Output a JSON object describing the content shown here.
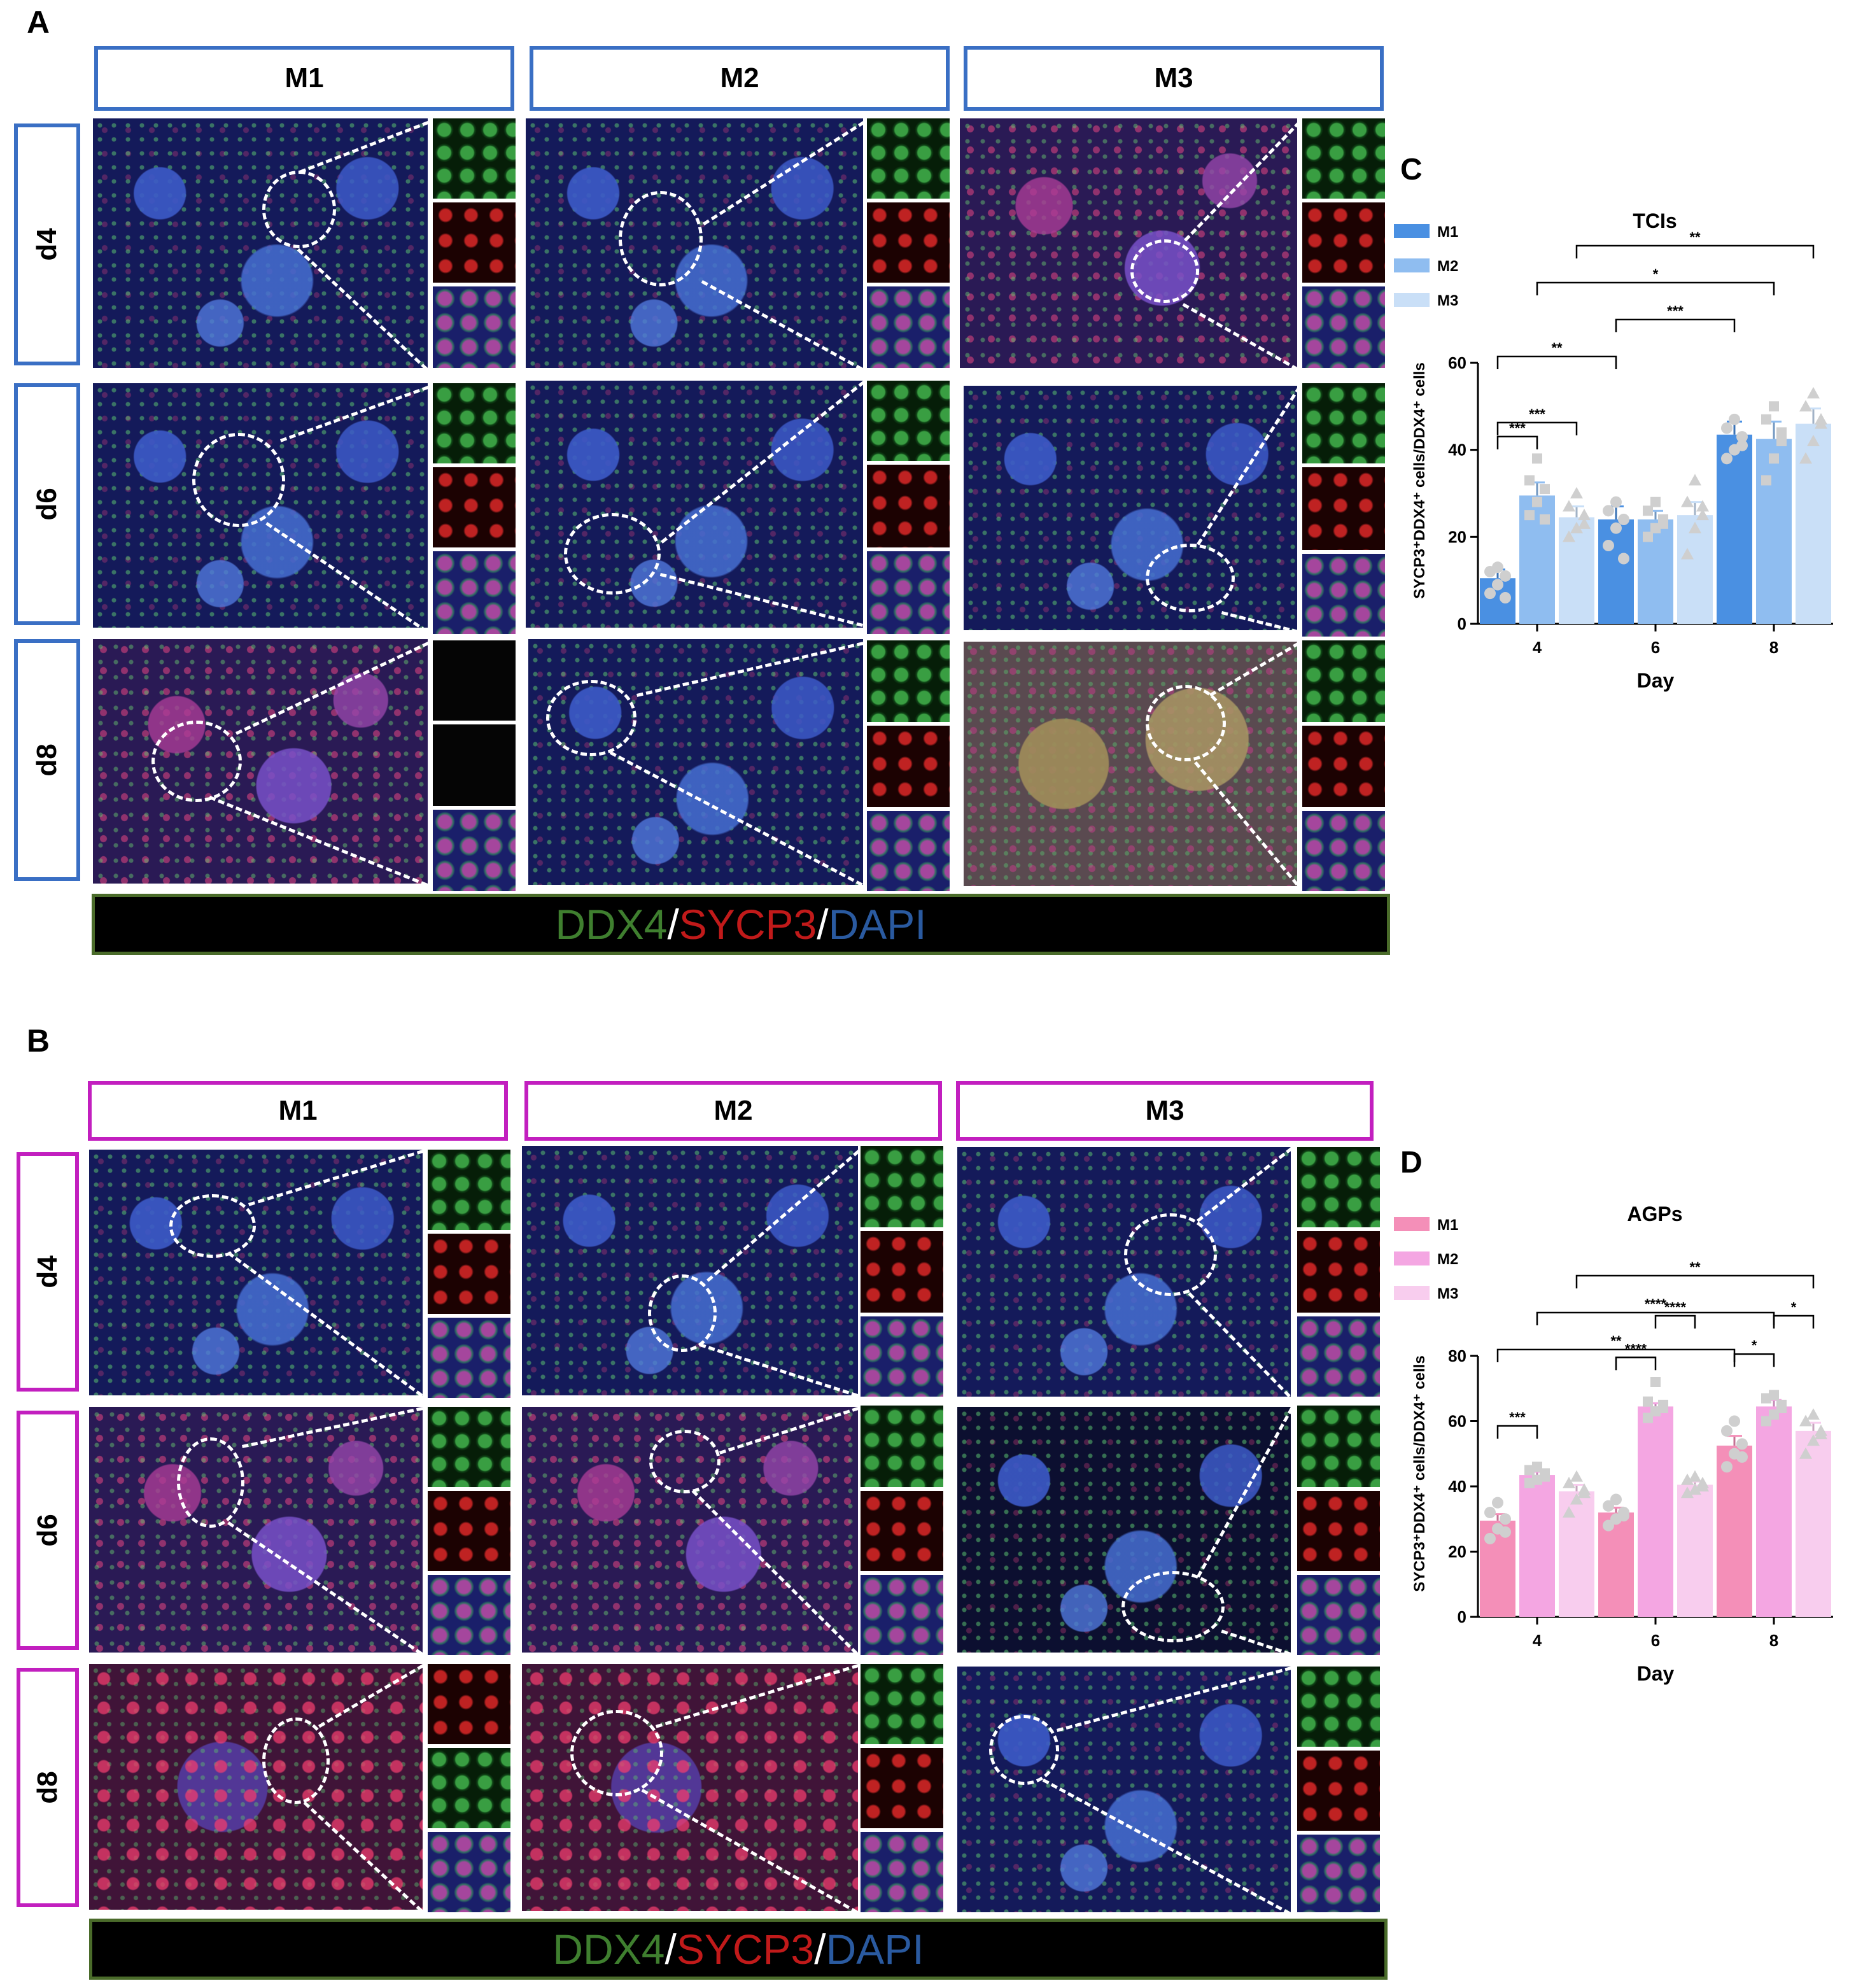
{
  "panels": {
    "A": {
      "letter": "A",
      "columns": [
        "M1",
        "M2",
        "M3"
      ],
      "rows": [
        "d4",
        "d6",
        "d8"
      ],
      "stain": {
        "ddx4": "DDX4",
        "sycp3": "SYCP3",
        "dapi": "DAPI",
        "slash": "/"
      },
      "frame_color": "#3a6fc4"
    },
    "B": {
      "letter": "B",
      "columns": [
        "M1",
        "M2",
        "M3"
      ],
      "rows": [
        "d4",
        "d6",
        "d8"
      ],
      "stain": {
        "ddx4": "DDX4",
        "sycp3": "SYCP3",
        "dapi": "DAPI",
        "slash": "/"
      },
      "frame_color": "#c21fbf"
    }
  },
  "chart_data": [
    {
      "panel_letter": "C",
      "type": "bar",
      "title": "TCIs",
      "xlabel": "Day",
      "ylabel": "SYCP3⁺DDX4⁺ cells/DDX4⁺ cells",
      "categories": [
        "4",
        "6",
        "8"
      ],
      "ylim": [
        0,
        60
      ],
      "yticks": [
        "0",
        "20",
        "40",
        "60"
      ],
      "legend_position": "top-left",
      "series": [
        {
          "name": "M1",
          "color": "#4a90e2",
          "values": [
            10.5,
            24,
            43.5
          ],
          "errors": [
            2,
            3,
            3
          ],
          "points": [
            [
              7,
              9,
              11,
              12,
              13,
              6
            ],
            [
              18,
              22,
              24,
              26,
              28,
              15
            ],
            [
              38,
              40,
              43,
              45,
              47,
              41
            ]
          ]
        },
        {
          "name": "M2",
          "color": "#8fbdf0",
          "values": [
            29.5,
            24,
            42.5
          ],
          "errors": [
            3,
            2,
            4
          ],
          "points": [
            [
              25,
              28,
              31,
              33,
              38,
              24
            ],
            [
              20,
              22,
              24,
              26,
              28,
              23
            ],
            [
              33,
              38,
              42,
              47,
              50,
              44
            ]
          ]
        },
        {
          "name": "M3",
          "color": "#c9dff7",
          "values": [
            24.5,
            25,
            46
          ],
          "errors": [
            2.5,
            3,
            3.5
          ],
          "points": [
            [
              20,
              22,
              25,
              27,
              30,
              23
            ],
            [
              16,
              22,
              25,
              28,
              33,
              27
            ],
            [
              38,
              42,
              46,
              50,
              53,
              47
            ]
          ]
        }
      ],
      "significance": [
        {
          "from": [
            0,
            0
          ],
          "to": [
            0,
            1
          ],
          "label": "***"
        },
        {
          "from": [
            0,
            0
          ],
          "to": [
            0,
            2
          ],
          "label": "***"
        },
        {
          "from": [
            0,
            0
          ],
          "to": [
            1,
            0
          ],
          "label": "**"
        },
        {
          "from": [
            1,
            0
          ],
          "to": [
            2,
            0
          ],
          "label": "***"
        },
        {
          "from": [
            0,
            1
          ],
          "to": [
            2,
            1
          ],
          "label": "*"
        },
        {
          "from": [
            0,
            2
          ],
          "to": [
            2,
            2
          ],
          "label": "**"
        }
      ]
    },
    {
      "panel_letter": "D",
      "type": "bar",
      "title": "AGPs",
      "xlabel": "Day",
      "ylabel": "SYCP3⁺DDX4⁺ cells/DDX4⁺ cells",
      "categories": [
        "4",
        "6",
        "8"
      ],
      "ylim": [
        0,
        80
      ],
      "yticks": [
        "0",
        "20",
        "40",
        "60",
        "80"
      ],
      "legend_position": "top-left",
      "series": [
        {
          "name": "M1",
          "color": "#f48fb8",
          "values": [
            29.5,
            32,
            52.5
          ],
          "errors": [
            2,
            1.5,
            3
          ],
          "points": [
            [
              24,
              27,
              30,
              32,
              35,
              26
            ],
            [
              28,
              30,
              32,
              34,
              36,
              31
            ],
            [
              46,
              50,
              53,
              57,
              60,
              49
            ]
          ]
        },
        {
          "name": "M2",
          "color": "#f4a6e2",
          "values": [
            43.5,
            64.5,
            64.5
          ],
          "errors": [
            1,
            1,
            2
          ],
          "points": [
            [
              41,
              42,
              44,
              45,
              46,
              43
            ],
            [
              61,
              63,
              64,
              66,
              72,
              65
            ],
            [
              60,
              62,
              65,
              67,
              68,
              64
            ]
          ]
        },
        {
          "name": "M3",
          "color": "#f8cdee",
          "values": [
            38.5,
            40.5,
            57
          ],
          "errors": [
            2,
            1,
            2.5
          ],
          "points": [
            [
              32,
              36,
              39,
              41,
              43,
              38
            ],
            [
              38,
              39,
              40,
              42,
              43,
              41
            ],
            [
              50,
              54,
              57,
              60,
              62,
              56
            ]
          ]
        }
      ],
      "significance": [
        {
          "from": [
            0,
            0
          ],
          "to": [
            0,
            1
          ],
          "label": "***"
        },
        {
          "from": [
            1,
            0
          ],
          "to": [
            1,
            1
          ],
          "label": "****"
        },
        {
          "from": [
            1,
            1
          ],
          "to": [
            1,
            2
          ],
          "label": "****"
        },
        {
          "from": [
            2,
            0
          ],
          "to": [
            2,
            1
          ],
          "label": "*"
        },
        {
          "from": [
            2,
            1
          ],
          "to": [
            2,
            2
          ],
          "label": "*"
        },
        {
          "from": [
            0,
            0
          ],
          "to": [
            2,
            0
          ],
          "label": "**"
        },
        {
          "from": [
            0,
            1
          ],
          "to": [
            2,
            1
          ],
          "label": "****"
        },
        {
          "from": [
            0,
            2
          ],
          "to": [
            2,
            2
          ],
          "label": "**"
        }
      ]
    }
  ]
}
